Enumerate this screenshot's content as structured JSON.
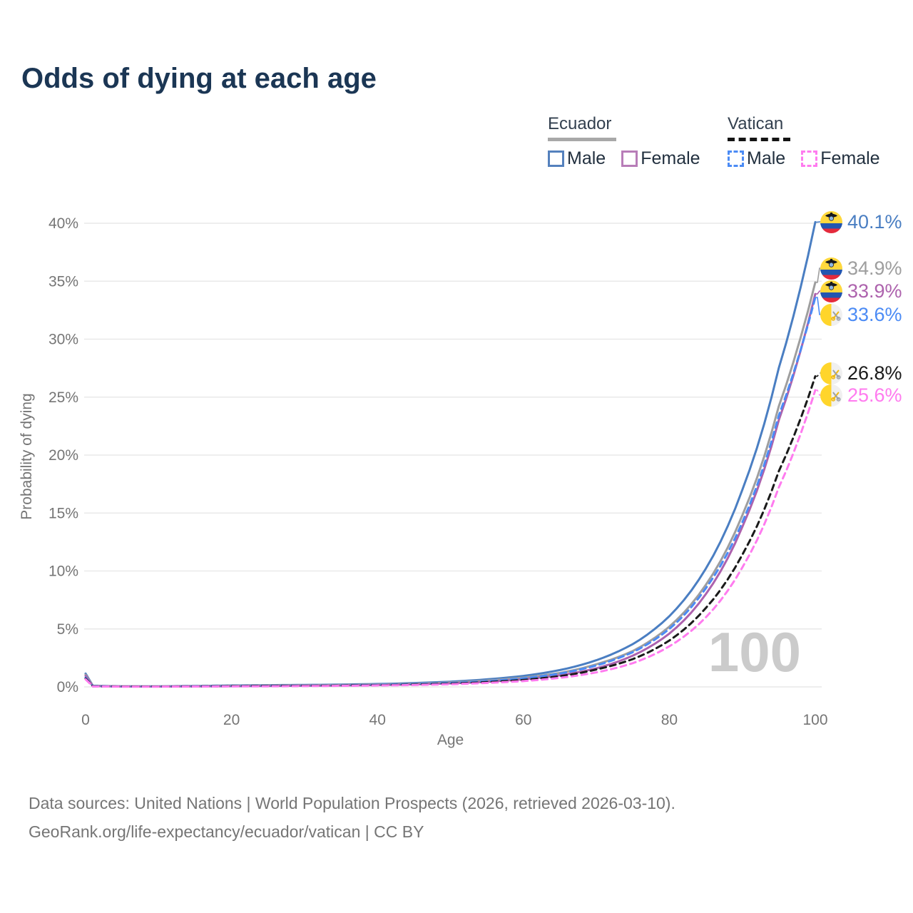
{
  "title": "Odds of dying at each age",
  "legend": {
    "groups": [
      {
        "name": "Ecuador",
        "line_style": "solid",
        "underline_color": "#a8a8a8",
        "items": [
          {
            "label": "Male",
            "color": "#5581bd",
            "dashed": false
          },
          {
            "label": "Female",
            "color": "#b87db8",
            "dashed": false
          }
        ]
      },
      {
        "name": "Vatican",
        "line_style": "dashed",
        "underline_color": "#141414",
        "items": [
          {
            "label": "Male",
            "color": "#4b8bf5",
            "dashed": true
          },
          {
            "label": "Female",
            "color": "#ff7bef",
            "dashed": true
          }
        ]
      }
    ]
  },
  "chart_data": {
    "type": "line",
    "title": "Odds of dying at each age",
    "xlabel": "Age",
    "ylabel": "Probability of dying",
    "xlim": [
      0,
      100
    ],
    "ylim": [
      0,
      40
    ],
    "x_ticks": [
      0,
      20,
      40,
      60,
      80,
      100
    ],
    "y_ticks": [
      0,
      5,
      10,
      15,
      20,
      25,
      30,
      35,
      40
    ],
    "y_tick_suffix": "%",
    "grid": "horizontal",
    "legend_position": "top-right",
    "watermark": "100",
    "x": [
      0,
      1,
      5,
      10,
      15,
      20,
      25,
      30,
      35,
      40,
      45,
      50,
      55,
      60,
      65,
      70,
      75,
      80,
      85,
      90,
      95,
      100
    ],
    "series": [
      {
        "name": "Ecuador Male",
        "country": "Ecuador",
        "sex": "male",
        "color": "#4a7ec2",
        "dashed": false,
        "flag": "ecuador",
        "end_label": "40.1%",
        "end_value": 40.1,
        "values": [
          1.15,
          0.1,
          0.05,
          0.05,
          0.08,
          0.12,
          0.15,
          0.17,
          0.2,
          0.25,
          0.33,
          0.45,
          0.65,
          0.95,
          1.45,
          2.3,
          3.7,
          6.1,
          10.2,
          17.0,
          27.5,
          40.1
        ]
      },
      {
        "name": "Ecuador Both sexes",
        "country": "Ecuador",
        "sex": "both",
        "color": "#9e9e9e",
        "dashed": false,
        "flag": "ecuador",
        "end_label": "34.9%",
        "end_value": 34.9,
        "values": [
          1.05,
          0.08,
          0.04,
          0.04,
          0.06,
          0.09,
          0.12,
          0.14,
          0.16,
          0.2,
          0.27,
          0.38,
          0.55,
          0.8,
          1.2,
          1.95,
          3.1,
          5.2,
          8.8,
          14.8,
          24.2,
          34.9
        ]
      },
      {
        "name": "Ecuador Female",
        "country": "Ecuador",
        "sex": "female",
        "color": "#ad62ad",
        "dashed": false,
        "flag": "ecuador",
        "end_label": "33.9%",
        "end_value": 33.9,
        "values": [
          0.95,
          0.07,
          0.04,
          0.03,
          0.05,
          0.06,
          0.08,
          0.1,
          0.12,
          0.16,
          0.22,
          0.31,
          0.45,
          0.66,
          1.0,
          1.6,
          2.7,
          4.6,
          8.0,
          13.8,
          23.0,
          33.9
        ]
      },
      {
        "name": "Vatican Male",
        "country": "Vatican",
        "sex": "male",
        "color": "#4b8bf5",
        "dashed": true,
        "flag": "vatican",
        "end_label": "33.6%",
        "end_value": 33.6,
        "values": [
          0.8,
          0.06,
          0.03,
          0.03,
          0.05,
          0.07,
          0.09,
          0.11,
          0.13,
          0.17,
          0.24,
          0.34,
          0.5,
          0.74,
          1.15,
          1.85,
          3.0,
          5.0,
          8.5,
          14.2,
          23.4,
          33.6
        ]
      },
      {
        "name": "Vatican Both sexes",
        "country": "Vatican",
        "sex": "both",
        "color": "#1a1a1a",
        "dashed": true,
        "flag": "vatican",
        "end_label": "26.8%",
        "end_value": 26.8,
        "values": [
          0.72,
          0.05,
          0.03,
          0.03,
          0.04,
          0.06,
          0.08,
          0.09,
          0.11,
          0.14,
          0.2,
          0.28,
          0.41,
          0.6,
          0.92,
          1.5,
          2.4,
          4.0,
          6.8,
          11.4,
          18.6,
          26.8
        ]
      },
      {
        "name": "Vatican Female",
        "country": "Vatican",
        "sex": "female",
        "color": "#ff7bef",
        "dashed": true,
        "flag": "vatican",
        "end_label": "25.6%",
        "end_value": 25.6,
        "values": [
          0.65,
          0.04,
          0.02,
          0.02,
          0.03,
          0.04,
          0.05,
          0.07,
          0.09,
          0.12,
          0.16,
          0.23,
          0.34,
          0.5,
          0.78,
          1.25,
          2.05,
          3.5,
          6.0,
          10.3,
          17.2,
          25.6
        ]
      }
    ]
  },
  "footer": {
    "line1": "Data sources: United Nations | World Population Prospects (2026, retrieved 2026-03-10).",
    "line2": "GeoRank.org/life-expectancy/ecuador/vatican | CC BY"
  }
}
